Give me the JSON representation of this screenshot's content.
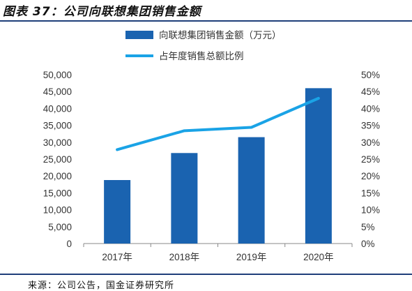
{
  "figure": {
    "title": "图表 37：公司向联想集团销售金额",
    "source": "来源：公司公告，国金证券研究所"
  },
  "chart_data": {
    "type": "bar",
    "categories": [
      "2017年",
      "2018年",
      "2019年",
      "2020年"
    ],
    "series": [
      {
        "name": "向联想集团销售金额（万元）",
        "type": "bar",
        "axis": "left",
        "values": [
          18800,
          26800,
          31500,
          46000
        ]
      },
      {
        "name": "占年度销售总额比例",
        "type": "line",
        "axis": "right",
        "values": [
          27.8,
          33.4,
          34.4,
          43.0
        ]
      }
    ],
    "y_left": {
      "min": 0,
      "max": 50000,
      "step": 5000,
      "tick_labels": [
        "0",
        "5,000",
        "10,000",
        "15,000",
        "20,000",
        "25,000",
        "30,000",
        "35,000",
        "40,000",
        "45,000",
        "50,000"
      ]
    },
    "y_right": {
      "min": 0,
      "max": 50,
      "step": 5,
      "tick_labels": [
        "0%",
        "5%",
        "10%",
        "15%",
        "20%",
        "25%",
        "30%",
        "35%",
        "40%",
        "45%",
        "50%"
      ]
    },
    "grid": false,
    "legend_position": "top-center",
    "colors": {
      "bar": "#1a63b0",
      "line": "#1aa3e6",
      "axis": "#888888"
    }
  }
}
